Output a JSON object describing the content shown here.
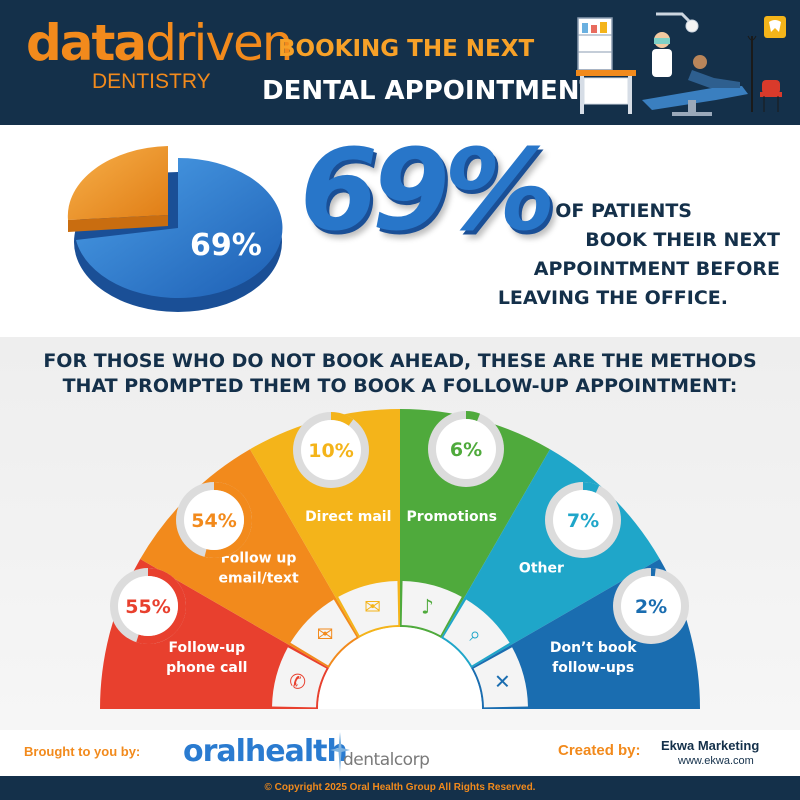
{
  "header": {
    "logo_data": "data",
    "logo_driven": "driven",
    "logo_dentistry": "DENTISTRY",
    "title_line1": "BOOKING THE NEXT",
    "title_line2": "DENTAL APPOINTMENT"
  },
  "stat": {
    "pie_label": "69%",
    "big_number": "69%",
    "line1": "OF PATIENTS",
    "line2": "BOOK THEIR NEXT",
    "line3": "APPOINTMENT BEFORE",
    "line4": "LEAVING THE OFFICE."
  },
  "methods": {
    "question_line1": "FOR THOSE WHO DO NOT BOOK AHEAD, THESE ARE THE METHODS",
    "question_line2": "THAT PROMPTED THEM TO BOOK A FOLLOW-UP APPOINTMENT:",
    "items": [
      {
        "label": "Follow-up phone call",
        "lines": [
          "Follow-up",
          "phone call"
        ],
        "value": "55%",
        "fraction": 0.55,
        "color": "#e8402e",
        "icon": "phone-icon"
      },
      {
        "label": "Follow up email/text",
        "lines": [
          "Follow up",
          "email/text"
        ],
        "value": "54%",
        "fraction": 0.54,
        "color": "#f28a1c",
        "icon": "email-icon"
      },
      {
        "label": "Direct mail",
        "lines": [
          "Direct mail"
        ],
        "value": "10%",
        "fraction": 0.1,
        "color": "#f4b41a",
        "icon": "mailbox-icon"
      },
      {
        "label": "Promotions",
        "lines": [
          "Promotions"
        ],
        "value": "6%",
        "fraction": 0.06,
        "color": "#4faa3c",
        "icon": "megaphone-icon"
      },
      {
        "label": "Other",
        "lines": [
          "Other"
        ],
        "value": "7%",
        "fraction": 0.07,
        "color": "#1fa6c9",
        "icon": "search-icon"
      },
      {
        "label": "Don't book follow-ups",
        "lines": [
          "Don’t book",
          "follow-ups"
        ],
        "value": "2%",
        "fraction": 0.02,
        "color": "#1a6db0",
        "icon": "calendar-x-icon"
      }
    ]
  },
  "footer": {
    "brought_by": "Brought to you by:",
    "oralhealth": "oralhealth",
    "dentalcorp": "dentalcorp",
    "created_by": "Created by:",
    "ekwa_name": "Ekwa Marketing",
    "ekwa_url": "www.ekwa.com",
    "copyright": "© Copyright 2025 Oral Health Group All Rights Reserved."
  },
  "colors": {
    "navy": "#14304a",
    "orange": "#f28a1c",
    "blue": "#2876c9"
  }
}
